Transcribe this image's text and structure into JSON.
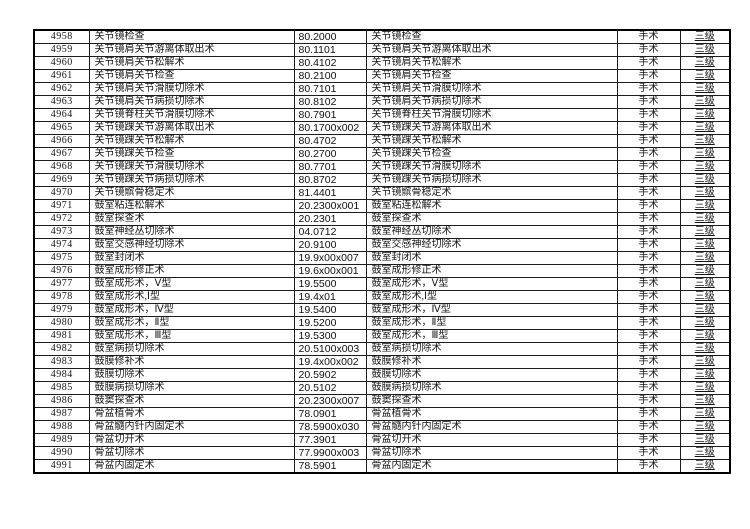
{
  "table": {
    "category_label": "手术",
    "level_label": "三级",
    "rows": [
      {
        "id": "4958",
        "name": "关节镜检查",
        "code": "80.2000",
        "category": "手术",
        "level": "三级"
      },
      {
        "id": "4959",
        "name": "关节镜肩关节游离体取出术",
        "code": "80.1101",
        "category": "手术",
        "level": "三级"
      },
      {
        "id": "4960",
        "name": "关节镜肩关节松解术",
        "code": "80.4102",
        "category": "手术",
        "level": "三级"
      },
      {
        "id": "4961",
        "name": "关节镜肩关节检查",
        "code": "80.2100",
        "category": "手术",
        "level": "三级"
      },
      {
        "id": "4962",
        "name": "关节镜肩关节滑膜切除术",
        "code": "80.7101",
        "category": "手术",
        "level": "三级"
      },
      {
        "id": "4963",
        "name": "关节镜肩关节病损切除术",
        "code": "80.8102",
        "category": "手术",
        "level": "三级"
      },
      {
        "id": "4964",
        "name": "关节镜脊柱关节滑膜切除术",
        "code": "80.7901",
        "category": "手术",
        "level": "三级"
      },
      {
        "id": "4965",
        "name": "关节镜踝关节游离体取出术",
        "code": "80.1700x002",
        "category": "手术",
        "level": "三级"
      },
      {
        "id": "4966",
        "name": "关节镜踝关节松解术",
        "code": "80.4702",
        "category": "手术",
        "level": "三级"
      },
      {
        "id": "4967",
        "name": "关节镜踝关节检查",
        "code": "80.2700",
        "category": "手术",
        "level": "三级"
      },
      {
        "id": "4968",
        "name": "关节镜踝关节滑膜切除术",
        "code": "80.7701",
        "category": "手术",
        "level": "三级"
      },
      {
        "id": "4969",
        "name": "关节镜踝关节病损切除术",
        "code": "80.8702",
        "category": "手术",
        "level": "三级"
      },
      {
        "id": "4970",
        "name": "关节镜髌骨稳定术",
        "code": "81.4401",
        "category": "手术",
        "level": "三级"
      },
      {
        "id": "4971",
        "name": "鼓室粘连松解术",
        "code": "20.2300x001",
        "category": "手术",
        "level": "三级"
      },
      {
        "id": "4972",
        "name": "鼓室探查术",
        "code": "20.2301",
        "category": "手术",
        "level": "三级"
      },
      {
        "id": "4973",
        "name": "鼓室神经丛切除术",
        "code": "04.0712",
        "category": "手术",
        "level": "三级"
      },
      {
        "id": "4974",
        "name": "鼓室交感神经切除术",
        "code": "20.9100",
        "category": "手术",
        "level": "三级"
      },
      {
        "id": "4975",
        "name": "鼓室封闭术",
        "code": "19.9x00x007",
        "category": "手术",
        "level": "三级"
      },
      {
        "id": "4976",
        "name": "鼓室成形修正术",
        "code": "19.6x00x001",
        "category": "手术",
        "level": "三级"
      },
      {
        "id": "4977",
        "name": "鼓室成形术，Ⅴ型",
        "code": "19.5500",
        "category": "手术",
        "level": "三级"
      },
      {
        "id": "4978",
        "name": "鼓室成形术,Ⅰ型",
        "code": "19.4x01",
        "category": "手术",
        "level": "三级"
      },
      {
        "id": "4979",
        "name": "鼓室成形术，Ⅳ型",
        "code": "19.5400",
        "category": "手术",
        "level": "三级"
      },
      {
        "id": "4980",
        "name": "鼓室成形术，Ⅱ型",
        "code": "19.5200",
        "category": "手术",
        "level": "三级"
      },
      {
        "id": "4981",
        "name": "鼓室成形术，Ⅲ型",
        "code": "19.5300",
        "category": "手术",
        "level": "三级"
      },
      {
        "id": "4982",
        "name": "鼓室病损切除术",
        "code": "20.5100x003",
        "category": "手术",
        "level": "三级"
      },
      {
        "id": "4983",
        "name": "鼓膜修补术",
        "code": "19.4x00x002",
        "category": "手术",
        "level": "三级"
      },
      {
        "id": "4984",
        "name": "鼓膜切除术",
        "code": "20.5902",
        "category": "手术",
        "level": "三级"
      },
      {
        "id": "4985",
        "name": "鼓膜病损切除术",
        "code": "20.5102",
        "category": "手术",
        "level": "三级"
      },
      {
        "id": "4986",
        "name": "鼓窦探查术",
        "code": "20.2300x007",
        "category": "手术",
        "level": "三级"
      },
      {
        "id": "4987",
        "name": "骨盆植骨术",
        "code": "78.0901",
        "category": "手术",
        "level": "三级"
      },
      {
        "id": "4988",
        "name": "骨盆髓内针内固定术",
        "code": "78.5900x030",
        "category": "手术",
        "level": "三级"
      },
      {
        "id": "4989",
        "name": "骨盆切开术",
        "code": "77.3901",
        "category": "手术",
        "level": "三级"
      },
      {
        "id": "4990",
        "name": "骨盆切除术",
        "code": "77.9900x003",
        "category": "手术",
        "level": "三级"
      },
      {
        "id": "4991",
        "name": "骨盆内固定术",
        "code": "78.5901",
        "category": "手术",
        "level": "三级"
      }
    ]
  }
}
